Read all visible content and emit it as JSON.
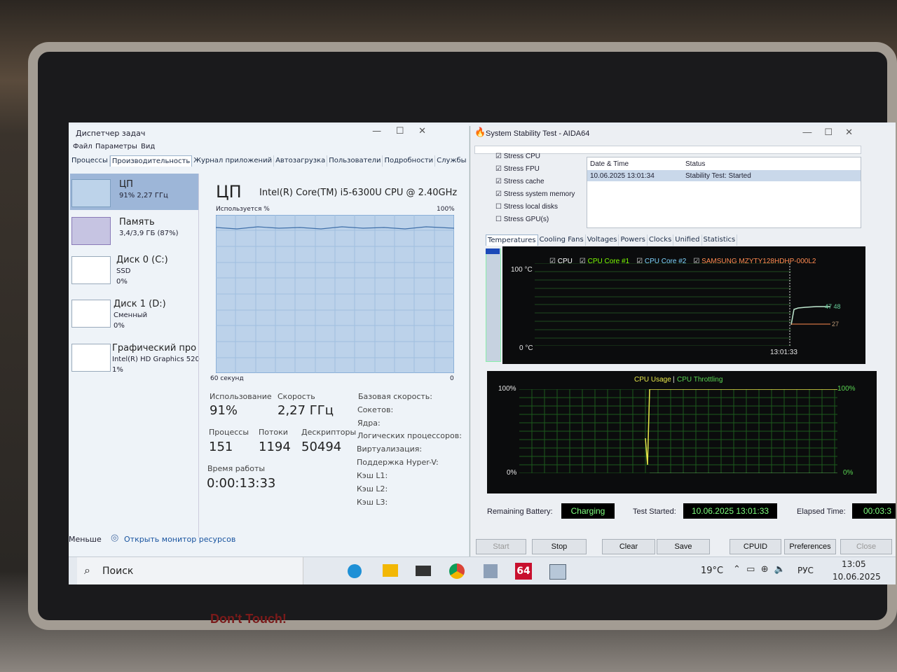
{
  "task_manager": {
    "title": "Диспетчер задач",
    "menu": [
      "Файл",
      "Параметры",
      "Вид"
    ],
    "tabs": [
      "Процессы",
      "Производительность",
      "Журнал приложений",
      "Автозагрузка",
      "Пользователи",
      "Подробности",
      "Службы"
    ],
    "sidebar": [
      {
        "name": "ЦП",
        "lines": [
          "91% 2,27 ГГц"
        ]
      },
      {
        "name": "Память",
        "lines": [
          "3,4/3,9 ГБ (87%)"
        ]
      },
      {
        "name": "Диск 0 (C:)",
        "lines": [
          "SSD",
          "0%"
        ]
      },
      {
        "name": "Диск 1 (D:)",
        "lines": [
          "Сменный",
          "0%"
        ]
      },
      {
        "name": "Графический про",
        "lines": [
          "Intel(R) HD Graphics 520",
          "1%"
        ]
      }
    ],
    "heading": "ЦП",
    "cpu_name": "Intel(R) Core(TM) i5-6300U CPU @ 2.40GHz",
    "graph": {
      "label": "Используется %",
      "top": "100%",
      "span": "60 секунд",
      "end": "0"
    },
    "stats": [
      {
        "label": "Использование",
        "value": "91%"
      },
      {
        "label": "Скорость",
        "value": "2,27 ГГц"
      },
      {
        "label": "Процессы",
        "value": "151"
      },
      {
        "label": "Потоки",
        "value": "1194"
      },
      {
        "label": "Дескрипторы",
        "value": "50494"
      },
      {
        "label": "Время работы",
        "value": "0:00:13:33"
      }
    ],
    "details": [
      "Базовая скорость:",
      "Сокетов:",
      "Ядра:",
      "Логических процессоров:",
      "Виртуализация:",
      "Поддержка Hyper-V:",
      "Кэш L1:",
      "Кэш L2:",
      "Кэш L3:"
    ],
    "footer": [
      "Меньше",
      "Открыть монитор ресурсов"
    ]
  },
  "aida": {
    "title": "System Stability Test - AIDA64",
    "stress": [
      {
        "label": "Stress CPU",
        "checked": true
      },
      {
        "label": "Stress FPU",
        "checked": true
      },
      {
        "label": "Stress cache",
        "checked": true
      },
      {
        "label": "Stress system memory",
        "checked": true
      },
      {
        "label": "Stress local disks",
        "checked": false
      },
      {
        "label": "Stress GPU(s)",
        "checked": false
      }
    ],
    "log_headers": [
      "Date & Time",
      "Status"
    ],
    "log_rows": [
      [
        "10.06.2025 13:01:34",
        "Stability Test: Started"
      ]
    ],
    "tabs": [
      "Temperatures",
      "Cooling Fans",
      "Voltages",
      "Powers",
      "Clocks",
      "Unified",
      "Statistics"
    ],
    "temp_chart": {
      "legend": [
        {
          "name": "CPU",
          "color": "#ffffff"
        },
        {
          "name": "CPU Core #1",
          "color": "#7cfc00"
        },
        {
          "name": "CPU Core #2",
          "color": "#7fd4ff"
        },
        {
          "name": "SAMSUNG MZYTY128HDHP-000L2",
          "color": "#ff8a50"
        }
      ],
      "top": "100 °C",
      "bottom": "0 °C",
      "time": "13:01:33",
      "reading_high": "47 48",
      "reading_low": "27"
    },
    "usage_chart": {
      "title_a": "CPU Usage",
      "sep": "|",
      "title_b": "CPU Throttling",
      "left_top": "100%",
      "left_bottom": "0%",
      "right_top": "100%",
      "right_bottom": "0%"
    },
    "status": [
      {
        "label": "Remaining Battery:",
        "value": "Charging"
      },
      {
        "label": "Test Started:",
        "value": "10.06.2025 13:01:33"
      },
      {
        "label": "Elapsed Time:",
        "value": "00:03:3"
      }
    ],
    "buttons": [
      "Start",
      "Stop",
      "Clear",
      "Save",
      "CPUID",
      "Preferences",
      "Close"
    ]
  },
  "taskbar": {
    "search": "Поиск",
    "app_badge": "64",
    "weather": "19°C",
    "language": "РУС",
    "time": "13:05",
    "date": "10.06.2025"
  },
  "bezel_print": "Don't Touch!"
}
